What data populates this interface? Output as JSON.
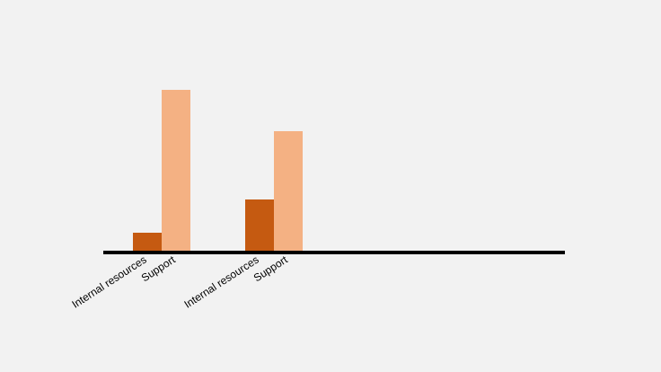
{
  "chart_data": {
    "type": "bar",
    "categories": [
      "Internal resources",
      "Support",
      "Internal resources",
      "Support"
    ],
    "values": [
      22,
      181,
      59,
      135
    ],
    "colors": [
      "#c55a11",
      "#f4b183",
      "#c55a11",
      "#f4b183"
    ]
  }
}
